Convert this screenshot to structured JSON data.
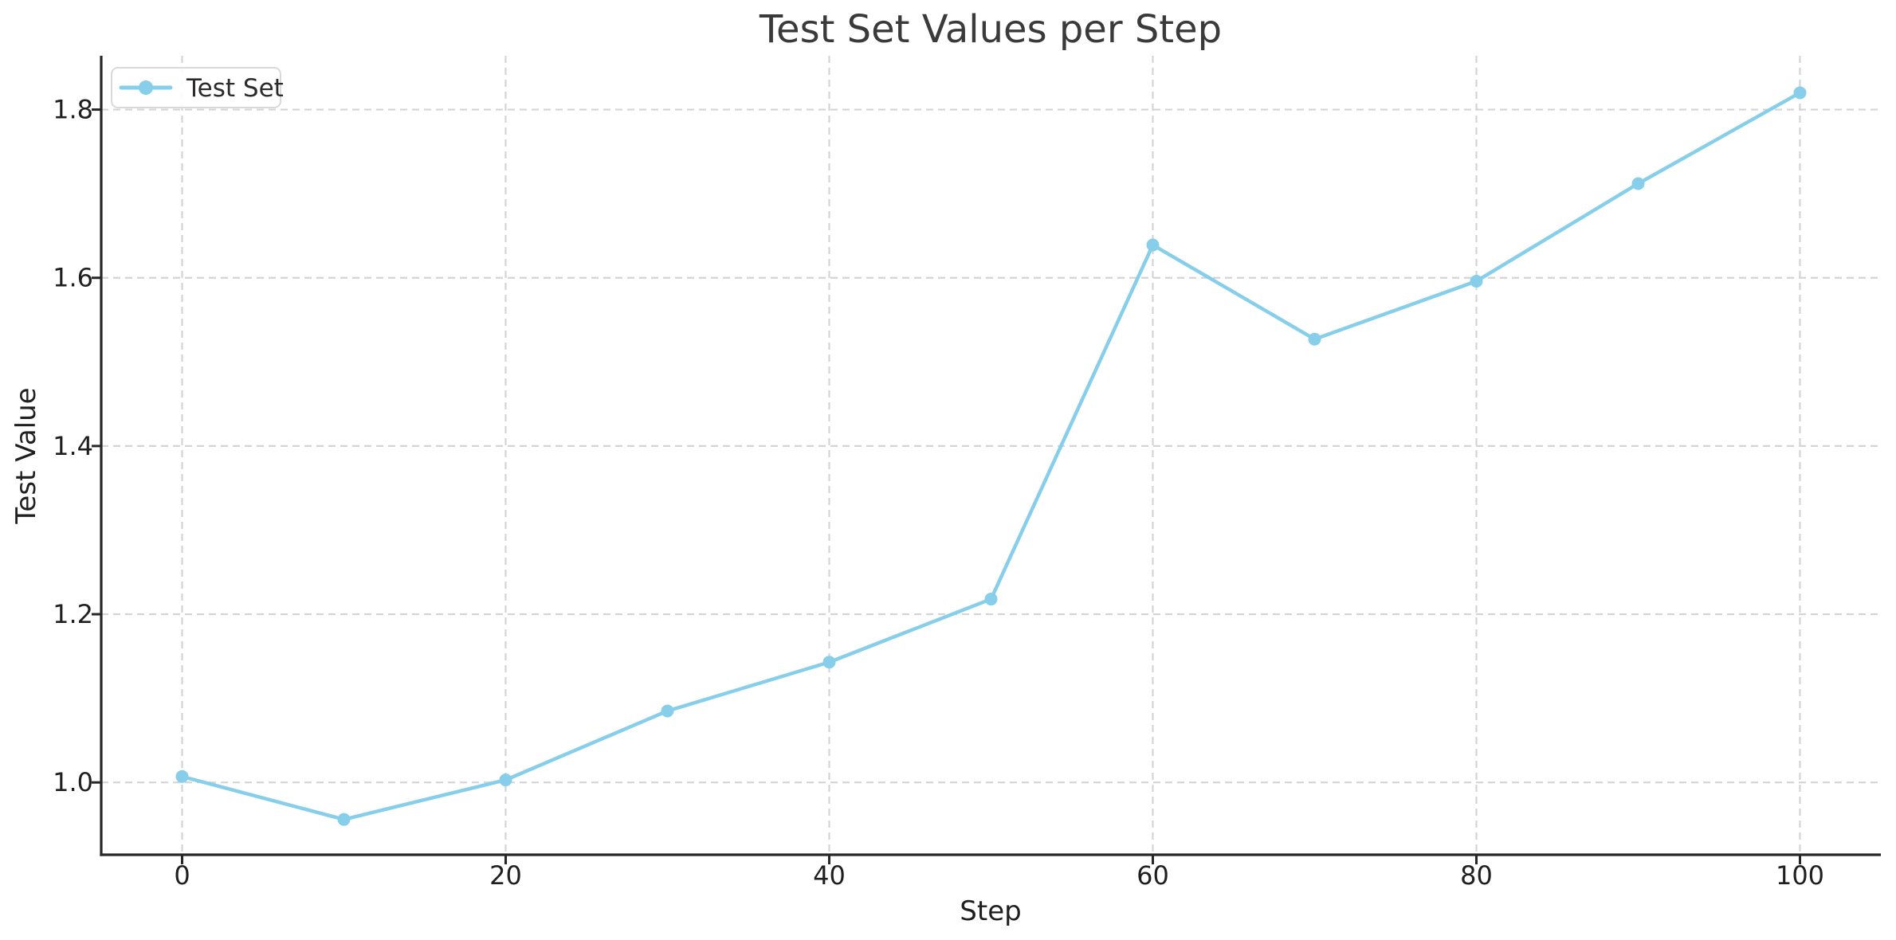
{
  "chart_data": {
    "type": "line",
    "title": "Test Set Values per Step",
    "xlabel": "Step",
    "ylabel": "Test Value",
    "grid": true,
    "legend_position": "upper left",
    "xlim": [
      -5,
      105
    ],
    "ylim": [
      0.914,
      1.864
    ],
    "x_ticks": [
      0,
      20,
      40,
      60,
      80,
      100
    ],
    "x_tick_labels": [
      "0",
      "20",
      "40",
      "60",
      "80",
      "100"
    ],
    "y_ticks": [
      1.0,
      1.2,
      1.4,
      1.6,
      1.8
    ],
    "y_tick_labels": [
      "1.0",
      "1.2",
      "1.4",
      "1.6",
      "1.8"
    ],
    "series": [
      {
        "name": "Test Set",
        "x": [
          0,
          10,
          20,
          30,
          40,
          50,
          60,
          70,
          80,
          90,
          100
        ],
        "y": [
          1.007,
          0.956,
          1.003,
          1.085,
          1.143,
          1.218,
          1.639,
          1.527,
          1.596,
          1.712,
          1.82
        ],
        "color": "#87CEEB",
        "marker": "circle"
      }
    ]
  },
  "colors": {
    "line": "#87CEEB",
    "grid": "#d4d4d4",
    "spine": "#262626",
    "tick": "#262626",
    "background": "#ffffff",
    "legend_border": "#d9d9d9",
    "legend_fill": "#ffffff"
  }
}
